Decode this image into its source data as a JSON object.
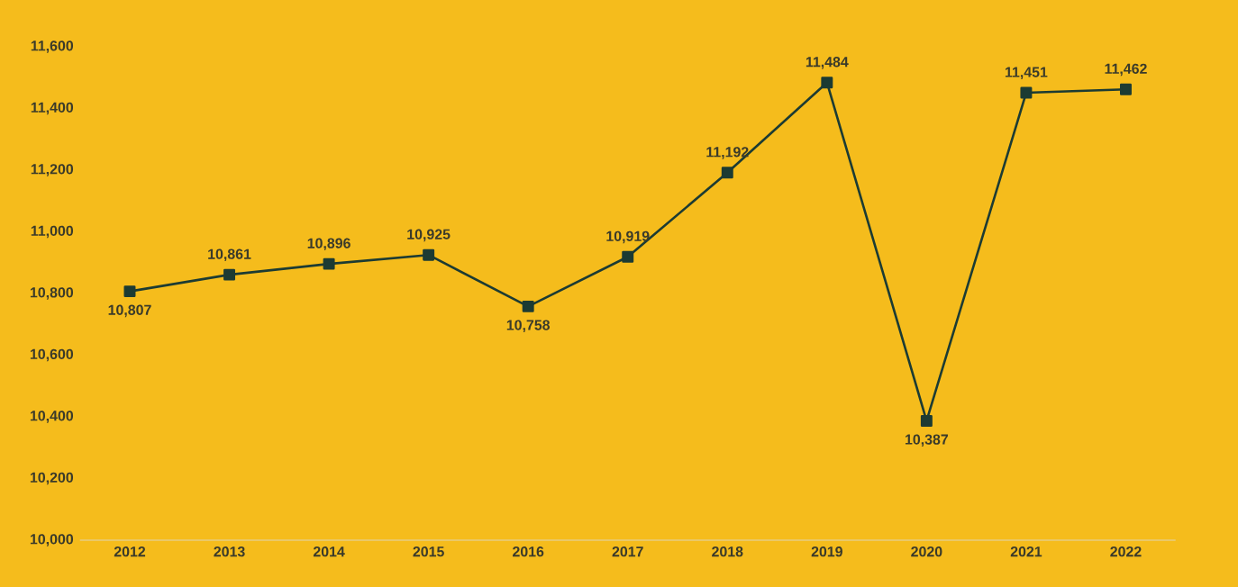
{
  "chart_data": {
    "type": "line",
    "categories": [
      "2012",
      "2013",
      "2014",
      "2015",
      "2016",
      "2017",
      "2018",
      "2019",
      "2020",
      "2021",
      "2022"
    ],
    "values": [
      10807,
      10861,
      10896,
      10925,
      10758,
      10919,
      11192,
      11484,
      10387,
      11451,
      11462
    ],
    "value_labels": [
      "10,807",
      "10,861",
      "10,896",
      "10,925",
      "10,758",
      "10,919",
      "11,192",
      "11,484",
      "10,387",
      "11,451",
      "11,462"
    ],
    "color": "#1c3b33",
    "marker": "square",
    "line_style": "solid",
    "grid": false,
    "ylim": [
      10000,
      11600
    ],
    "yticks": [
      {
        "value": 10000,
        "label": "10,000"
      },
      {
        "value": 10200,
        "label": "10,200"
      },
      {
        "value": 10400,
        "label": "10,400"
      },
      {
        "value": 10600,
        "label": "10,600"
      },
      {
        "value": 10800,
        "label": "10,800"
      },
      {
        "value": 11000,
        "label": "11,000"
      },
      {
        "value": 11200,
        "label": "11,200"
      },
      {
        "value": 11400,
        "label": "11,400"
      },
      {
        "value": 11600,
        "label": "11,600"
      }
    ]
  }
}
